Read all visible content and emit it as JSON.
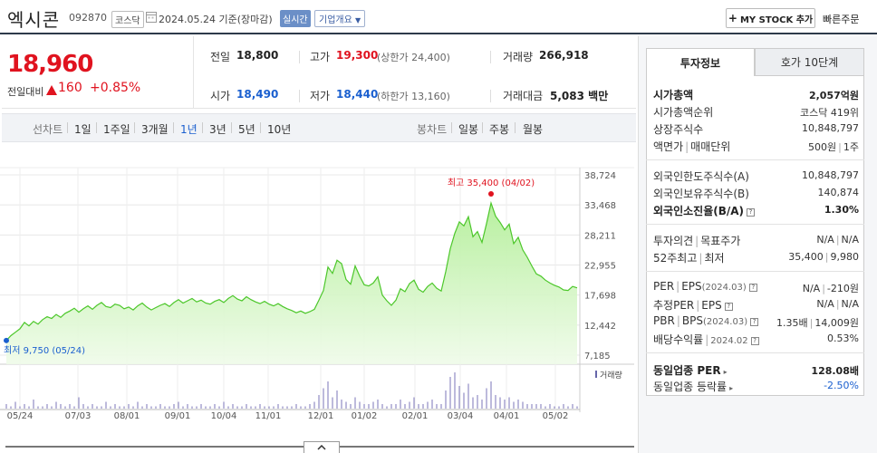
{
  "header": {
    "title": "엑시콘",
    "code": "092870",
    "market": "코스닥",
    "date": "2024.05.24 기준(장마감)",
    "realtime": "실시간",
    "company_info": "기업개요",
    "my_stock": "MY STOCK 추가",
    "quick_order": "빠른주문"
  },
  "quote": {
    "price": "18,960",
    "vs_prev_label": "전일대비",
    "change": "160",
    "change_pct": "+0.85%",
    "prev_label": "전일",
    "prev": "18,800",
    "high_label": "고가",
    "high": "19,300",
    "upper_limit": "(상한가 24,400)",
    "volume_label": "거래량",
    "volume": "266,918",
    "open_label": "시가",
    "open": "18,490",
    "low_label": "저가",
    "low": "18,440",
    "lower_limit": "(하한가 13,160)",
    "amount_label": "거래대금",
    "amount": "5,083",
    "amount_unit": "백만"
  },
  "periods": {
    "line_label": "선차트",
    "line": [
      "1일",
      "1주일",
      "3개월",
      "1년",
      "3년",
      "5년",
      "10년"
    ],
    "active": "1년",
    "candle_label": "봉차트",
    "candle": [
      "일봉",
      "주봉",
      "월봉"
    ]
  },
  "chart_data": {
    "type": "area",
    "title": "",
    "x_ticks": [
      "05/24",
      "07/03",
      "08/01",
      "09/01",
      "10/04",
      "11/01",
      "12/01",
      "01/02",
      "02/01",
      "03/04",
      "04/01",
      "05/02"
    ],
    "y_ticks": [
      38724,
      33468,
      28211,
      22955,
      17698,
      12442,
      7185
    ],
    "y_tick_labels": [
      "38,724",
      "33,468",
      "28,211",
      "22,955",
      "17,698",
      "12,442",
      "7,185"
    ],
    "ylim": [
      7185,
      38724
    ],
    "high_label": "최고 35,400 (04/02)",
    "high_value": 35400,
    "low_label": "최저 9,750 (05/24)",
    "low_value": 9750,
    "volume_legend": "거래량",
    "series": [
      {
        "values": [
          9750,
          10600,
          11200,
          11800,
          12900,
          12300,
          13100,
          12600,
          13400,
          13900,
          13600,
          14300,
          13800,
          14500,
          14900,
          15400,
          14700,
          15300,
          15800,
          15200,
          15900,
          16400,
          15700,
          15500,
          16100,
          15900,
          15300,
          15600,
          15100,
          15800,
          16300,
          15600,
          15100,
          15500,
          15900,
          16200,
          15700,
          16400,
          16900,
          16300,
          16700,
          17100,
          16500,
          16800,
          16300,
          16100,
          16600,
          16900,
          16400,
          17100,
          17600,
          17000,
          16700,
          17400,
          16900,
          16500,
          16200,
          16600,
          16100,
          15800,
          16200,
          15700,
          15300,
          15000,
          14600,
          14900,
          14500,
          14800,
          15200,
          16800,
          18500,
          22600,
          21500,
          23800,
          23200,
          20400,
          19600,
          22800,
          21000,
          19500,
          19300,
          19800,
          20900,
          17700,
          16700,
          15900,
          16800,
          18800,
          18300,
          19700,
          20300,
          18700,
          18200,
          19200,
          19800,
          18900,
          18400,
          21800,
          25800,
          28500,
          30500,
          29800,
          31400,
          27900,
          28800,
          26900,
          30200,
          33800,
          31500,
          30400,
          29100,
          30100,
          26700,
          27800,
          25600,
          24300,
          22800,
          21400,
          21000,
          20300,
          19800,
          19400,
          19100,
          18600,
          18500,
          19200,
          18960
        ],
        "volume": [
          2,
          1,
          3,
          1,
          2,
          1,
          4,
          1,
          1,
          2,
          1,
          3,
          2,
          1,
          2,
          1,
          5,
          2,
          1,
          2,
          1,
          1,
          3,
          1,
          2,
          1,
          1,
          2,
          1,
          3,
          1,
          2,
          1,
          1,
          2,
          1,
          1,
          2,
          3,
          1,
          2,
          1,
          1,
          2,
          1,
          1,
          2,
          1,
          3,
          1,
          2,
          1,
          1,
          2,
          1,
          1,
          2,
          1,
          1,
          1,
          2,
          1,
          1,
          1,
          2,
          1,
          1,
          2,
          3,
          6,
          9,
          12,
          5,
          8,
          4,
          3,
          2,
          5,
          3,
          2,
          2,
          3,
          4,
          2,
          1,
          2,
          2,
          4,
          2,
          3,
          5,
          2,
          2,
          3,
          4,
          2,
          2,
          8,
          14,
          16,
          10,
          7,
          11,
          5,
          6,
          4,
          9,
          12,
          6,
          5,
          4,
          5,
          3,
          4,
          3,
          2,
          2,
          2,
          2,
          1,
          2,
          1,
          1,
          2,
          1,
          2,
          1
        ]
      }
    ]
  },
  "right_panel": {
    "tab_invest": "투자정보",
    "tab_hoga": "호가 10단계",
    "market_cap_label": "시가총액",
    "market_cap": "2,057억원",
    "rank_label": "시가총액순위",
    "rank": "코스닥 419위",
    "shares_label": "상장주식수",
    "shares": "10,848,797",
    "par_label": "액면가",
    "unit_label": "매매단위",
    "par_unit": "500원",
    "unit": "1주",
    "foreign_limit_label": "외국인한도주식수(A)",
    "foreign_limit": "10,848,797",
    "foreign_hold_label": "외국인보유주식수(B)",
    "foreign_hold": "140,874",
    "foreign_ratio_label": "외국인소진율(B/A)",
    "foreign_ratio": "1.30%",
    "opinion_label": "투자의견",
    "target_label": "목표주가",
    "opinion": "N/A",
    "target": "N/A",
    "w52_label": "52주최고",
    "w52_low_label": "최저",
    "w52_high": "35,400",
    "w52_low": "9,980",
    "per_label": "PER",
    "eps_label": "EPS",
    "eps_period": "(2024.03)",
    "per": "N/A",
    "eps": "-210원",
    "est_per_label": "추정PER",
    "est_eps_label": "EPS",
    "est_per": "N/A",
    "est_eps": "N/A",
    "pbr_label": "PBR",
    "bps_label": "BPS",
    "bps_period": "(2024.03)",
    "pbr": "1.35배",
    "bps": "14,009원",
    "div_label": "배당수익률",
    "div_period": "2024.02",
    "div": "0.53%",
    "sector_per_label": "동일업종 PER",
    "sector_per": "128.08배",
    "sector_chg_label": "동일업종 등락률",
    "sector_chg": "-2.50%"
  }
}
